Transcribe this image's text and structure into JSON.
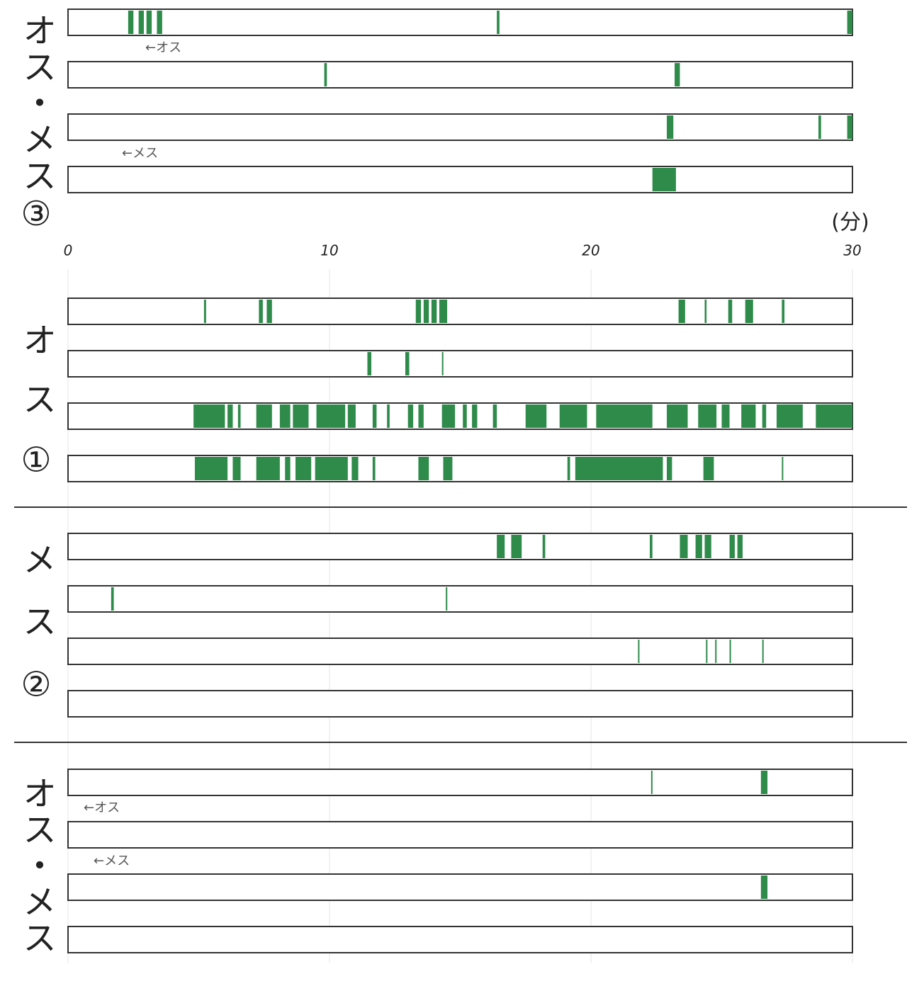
{
  "chart_data": {
    "type": "timeline",
    "xlim": [
      0,
      30
    ],
    "xticks": [
      0,
      10,
      20,
      30
    ],
    "xlabel": "(分)",
    "color": "#2e8b4a",
    "groups": [
      {
        "label": "オス・メス③",
        "rows": [
          {
            "annotation": "←オス",
            "segments": [
              [
                2.3,
                2.5
              ],
              [
                2.7,
                2.9
              ],
              [
                3.0,
                3.2
              ],
              [
                3.4,
                3.6
              ],
              [
                16.4,
                16.5
              ],
              [
                29.8,
                30
              ]
            ]
          },
          {
            "segments": [
              [
                9.8,
                9.9
              ],
              [
                23.2,
                23.4
              ]
            ]
          },
          {
            "segments": [
              [
                22.9,
                23.15
              ],
              [
                28.7,
                28.8
              ],
              [
                29.8,
                30
              ]
            ]
          },
          {
            "annotation": "←メス",
            "segments": [
              [
                22.35,
                23.25
              ]
            ]
          }
        ]
      },
      {
        "label": "オス①",
        "rows": [
          {
            "segments": [
              [
                5.2,
                5.28
              ],
              [
                7.3,
                7.45
              ],
              [
                7.6,
                7.8
              ],
              [
                13.3,
                13.5
              ],
              [
                13.6,
                13.8
              ],
              [
                13.9,
                14.1
              ],
              [
                14.2,
                14.5
              ],
              [
                23.35,
                23.6
              ],
              [
                24.35,
                24.42
              ],
              [
                25.25,
                25.4
              ],
              [
                25.9,
                26.2
              ],
              [
                27.3,
                27.4
              ]
            ]
          },
          {
            "segments": [
              [
                11.45,
                11.6
              ],
              [
                12.9,
                13.05
              ],
              [
                14.3,
                14.35
              ]
            ]
          },
          {
            "segments": [
              [
                4.8,
                6.0
              ],
              [
                6.1,
                6.3
              ],
              [
                6.5,
                6.6
              ],
              [
                7.2,
                7.8
              ],
              [
                8.1,
                8.5
              ],
              [
                8.6,
                9.2
              ],
              [
                9.5,
                10.6
              ],
              [
                10.7,
                11.0
              ],
              [
                11.65,
                11.8
              ],
              [
                12.2,
                12.3
              ],
              [
                13.0,
                13.2
              ],
              [
                13.4,
                13.6
              ],
              [
                14.3,
                14.8
              ],
              [
                15.1,
                15.25
              ],
              [
                15.45,
                15.65
              ],
              [
                16.25,
                16.4
              ],
              [
                17.5,
                18.3
              ],
              [
                18.8,
                19.85
              ],
              [
                20.2,
                22.35
              ],
              [
                22.9,
                23.7
              ],
              [
                24.1,
                24.8
              ],
              [
                25.0,
                25.3
              ],
              [
                25.75,
                26.3
              ],
              [
                26.55,
                26.7
              ],
              [
                27.1,
                28.1
              ],
              [
                28.6,
                30
              ]
            ]
          },
          {
            "segments": [
              [
                4.85,
                6.1
              ],
              [
                6.3,
                6.6
              ],
              [
                7.2,
                8.1
              ],
              [
                8.3,
                8.5
              ],
              [
                8.7,
                9.3
              ],
              [
                9.45,
                10.7
              ],
              [
                10.85,
                11.1
              ],
              [
                11.65,
                11.75
              ],
              [
                13.4,
                13.8
              ],
              [
                14.35,
                14.7
              ],
              [
                19.1,
                19.2
              ],
              [
                19.4,
                22.75
              ],
              [
                22.9,
                23.1
              ],
              [
                24.3,
                24.7
              ],
              [
                27.3,
                27.35
              ]
            ]
          }
        ]
      },
      {
        "label": "メス②",
        "rows": [
          {
            "segments": [
              [
                16.4,
                16.7
              ],
              [
                16.95,
                17.35
              ],
              [
                18.15,
                18.25
              ],
              [
                22.25,
                22.35
              ],
              [
                23.4,
                23.7
              ],
              [
                24.0,
                24.25
              ],
              [
                24.35,
                24.6
              ],
              [
                25.3,
                25.5
              ],
              [
                25.6,
                25.8
              ]
            ]
          },
          {
            "segments": [
              [
                1.65,
                1.75
              ],
              [
                14.45,
                14.5
              ]
            ]
          },
          {
            "segments": [
              [
                21.8,
                21.85
              ],
              [
                24.4,
                24.45
              ],
              [
                24.75,
                24.8
              ],
              [
                25.3,
                25.35
              ],
              [
                26.55,
                26.6
              ]
            ]
          },
          {
            "segments": []
          }
        ]
      },
      {
        "label": "オス・メス",
        "rows": [
          {
            "annotation": "←オス",
            "segments": [
              [
                22.3,
                22.35
              ],
              [
                26.5,
                26.75
              ]
            ]
          },
          {
            "segments": []
          },
          {
            "annotation": "←メス",
            "segments": [
              [
                26.5,
                26.75
              ]
            ]
          },
          {
            "segments": []
          }
        ]
      }
    ]
  }
}
